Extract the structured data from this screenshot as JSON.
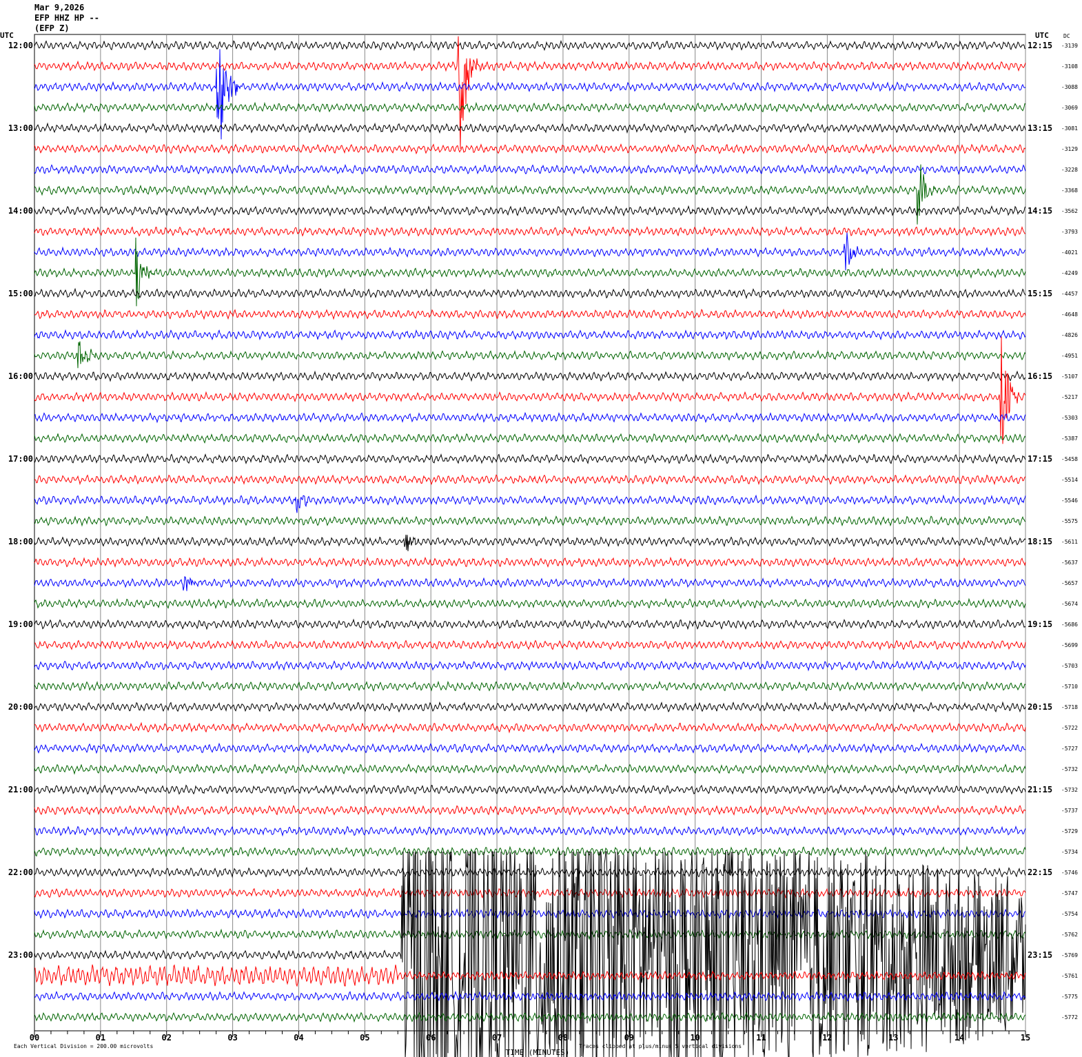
{
  "header": {
    "date": "Mar 9,2026",
    "station": "EFP HHZ HP --",
    "channel": "(EFP Z)"
  },
  "chart_data": {
    "type": "line",
    "title": "",
    "left_axis_label": "UTC",
    "right_axis_label": "UTC",
    "dc_label": "DC",
    "xlabel": "TIME (MINUTES)",
    "xlim": [
      0,
      15
    ],
    "x_ticks": [
      "00",
      "01",
      "02",
      "03",
      "04",
      "05",
      "06",
      "07",
      "08",
      "09",
      "10",
      "11",
      "12",
      "13",
      "14",
      "15"
    ],
    "left_hour_labels": [
      "12:00",
      "13:00",
      "14:00",
      "15:00",
      "16:00",
      "17:00",
      "18:00",
      "19:00",
      "20:00",
      "21:00",
      "22:00",
      "23:00"
    ],
    "right_hour_labels": [
      "12:15",
      "13:15",
      "14:15",
      "15:15",
      "16:15",
      "17:15",
      "18:15",
      "19:15",
      "20:15",
      "21:15",
      "22:15",
      "23:15"
    ],
    "trace_colors": [
      "#000000",
      "#ff0000",
      "#0000ff",
      "#006400"
    ],
    "grid": true,
    "dc_offsets": [
      -3139,
      -3108,
      -3088,
      -3069,
      -3081,
      -3129,
      -3228,
      -3368,
      -3562,
      -3793,
      -4021,
      -4249,
      -4457,
      -4648,
      -4826,
      -4951,
      -5107,
      -5217,
      -5303,
      -5387,
      -5458,
      -5514,
      -5546,
      -5575,
      -5611,
      -5637,
      -5657,
      -5674,
      -5686,
      -5699,
      -5703,
      -5710,
      -5718,
      -5722,
      -5727,
      -5732,
      -5732,
      -5737,
      -5729,
      -5734,
      -5746,
      -5747,
      -5754,
      -5762,
      -5769,
      -5761,
      -5775,
      -5772
    ],
    "events": [
      {
        "trace": 1,
        "minute": 6.45,
        "amplitude_div": 5
      },
      {
        "trace": 2,
        "minute": 2.8,
        "amplitude_div": 5
      },
      {
        "trace": 7,
        "minute": 13.4,
        "amplitude_div": 1.5
      },
      {
        "trace": 10,
        "minute": 12.3,
        "amplitude_div": 1.2
      },
      {
        "trace": 11,
        "minute": 1.55,
        "amplitude_div": 2
      },
      {
        "trace": 15,
        "minute": 0.7,
        "amplitude_div": 1
      },
      {
        "trace": 17,
        "minute": 14.65,
        "amplitude_div": 3.5
      },
      {
        "trace": 22,
        "minute": 4.0,
        "amplitude_div": 0.6
      },
      {
        "trace": 24,
        "minute": 5.65,
        "amplitude_div": 0.5
      },
      {
        "trace": 26,
        "minute": 2.3,
        "amplitude_div": 0.4
      },
      {
        "trace": 44,
        "minute": 5.55,
        "amplitude_div": 5
      }
    ],
    "footer_left": "Each Vertical Division =  200.00 microvolts",
    "footer_right": "Traces clipped at plus/minus 5 vertical divisions"
  }
}
